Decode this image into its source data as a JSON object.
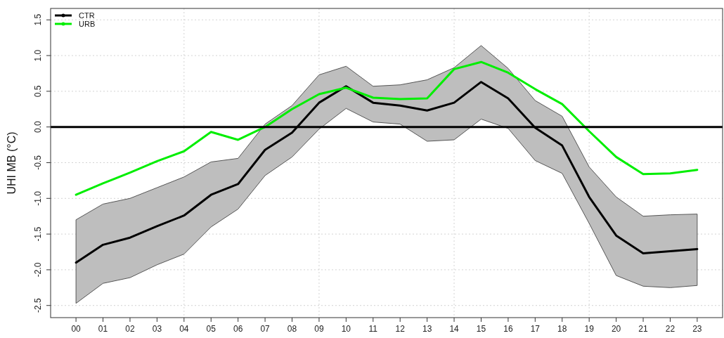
{
  "chart_data": {
    "type": "line",
    "ylabel": "UHI MB (°C)",
    "categories": [
      "00",
      "01",
      "02",
      "03",
      "04",
      "05",
      "06",
      "07",
      "08",
      "09",
      "10",
      "11",
      "12",
      "13",
      "14",
      "15",
      "16",
      "17",
      "18",
      "19",
      "20",
      "21",
      "22",
      "23"
    ],
    "series": [
      {
        "name": "CTR",
        "color": "#000000",
        "values": [
          -1.9,
          -1.65,
          -1.55,
          -1.39,
          -1.24,
          -0.95,
          -0.8,
          -0.32,
          -0.08,
          0.34,
          0.57,
          0.34,
          0.3,
          0.23,
          0.34,
          0.63,
          0.4,
          -0.01,
          -0.26,
          -0.98,
          -1.52,
          -1.77,
          -1.74,
          -1.71
        ],
        "lower": [
          -2.47,
          -2.19,
          -2.11,
          -1.93,
          -1.78,
          -1.4,
          -1.15,
          -0.68,
          -0.42,
          -0.03,
          0.26,
          0.07,
          0.04,
          -0.2,
          -0.18,
          0.11,
          -0.02,
          -0.47,
          -0.65,
          -1.35,
          -2.08,
          -2.23,
          -2.25,
          -2.22
        ],
        "upper": [
          -1.3,
          -1.08,
          -1.0,
          -0.85,
          -0.7,
          -0.49,
          -0.44,
          0.04,
          0.3,
          0.73,
          0.85,
          0.57,
          0.59,
          0.66,
          0.83,
          1.14,
          0.82,
          0.37,
          0.15,
          -0.56,
          -0.98,
          -1.25,
          -1.23,
          -1.22
        ]
      },
      {
        "name": "URB",
        "color": "#00ee00",
        "values": [
          -0.95,
          -0.79,
          -0.64,
          -0.48,
          -0.34,
          -0.07,
          -0.18,
          0.0,
          0.25,
          0.46,
          0.55,
          0.41,
          0.39,
          0.4,
          0.81,
          0.91,
          0.76,
          0.53,
          0.32,
          -0.06,
          -0.42,
          -0.66,
          -0.65,
          -0.6
        ]
      }
    ],
    "ylim": [
      -2.67,
      1.66
    ],
    "yticks": [
      -2.5,
      {
        "value": -2,
        "label": "-2.0"
      },
      -1.5,
      {
        "value": -1,
        "label": "-1.0"
      },
      -0.5,
      {
        "value": 0,
        "label": "0.0"
      },
      0.5,
      {
        "value": 1,
        "label": "1.0"
      },
      1.5
    ],
    "ref_lines": [
      {
        "axis": "y",
        "value": 0,
        "color": "#000000"
      }
    ],
    "grid": true,
    "legend": "top left"
  }
}
